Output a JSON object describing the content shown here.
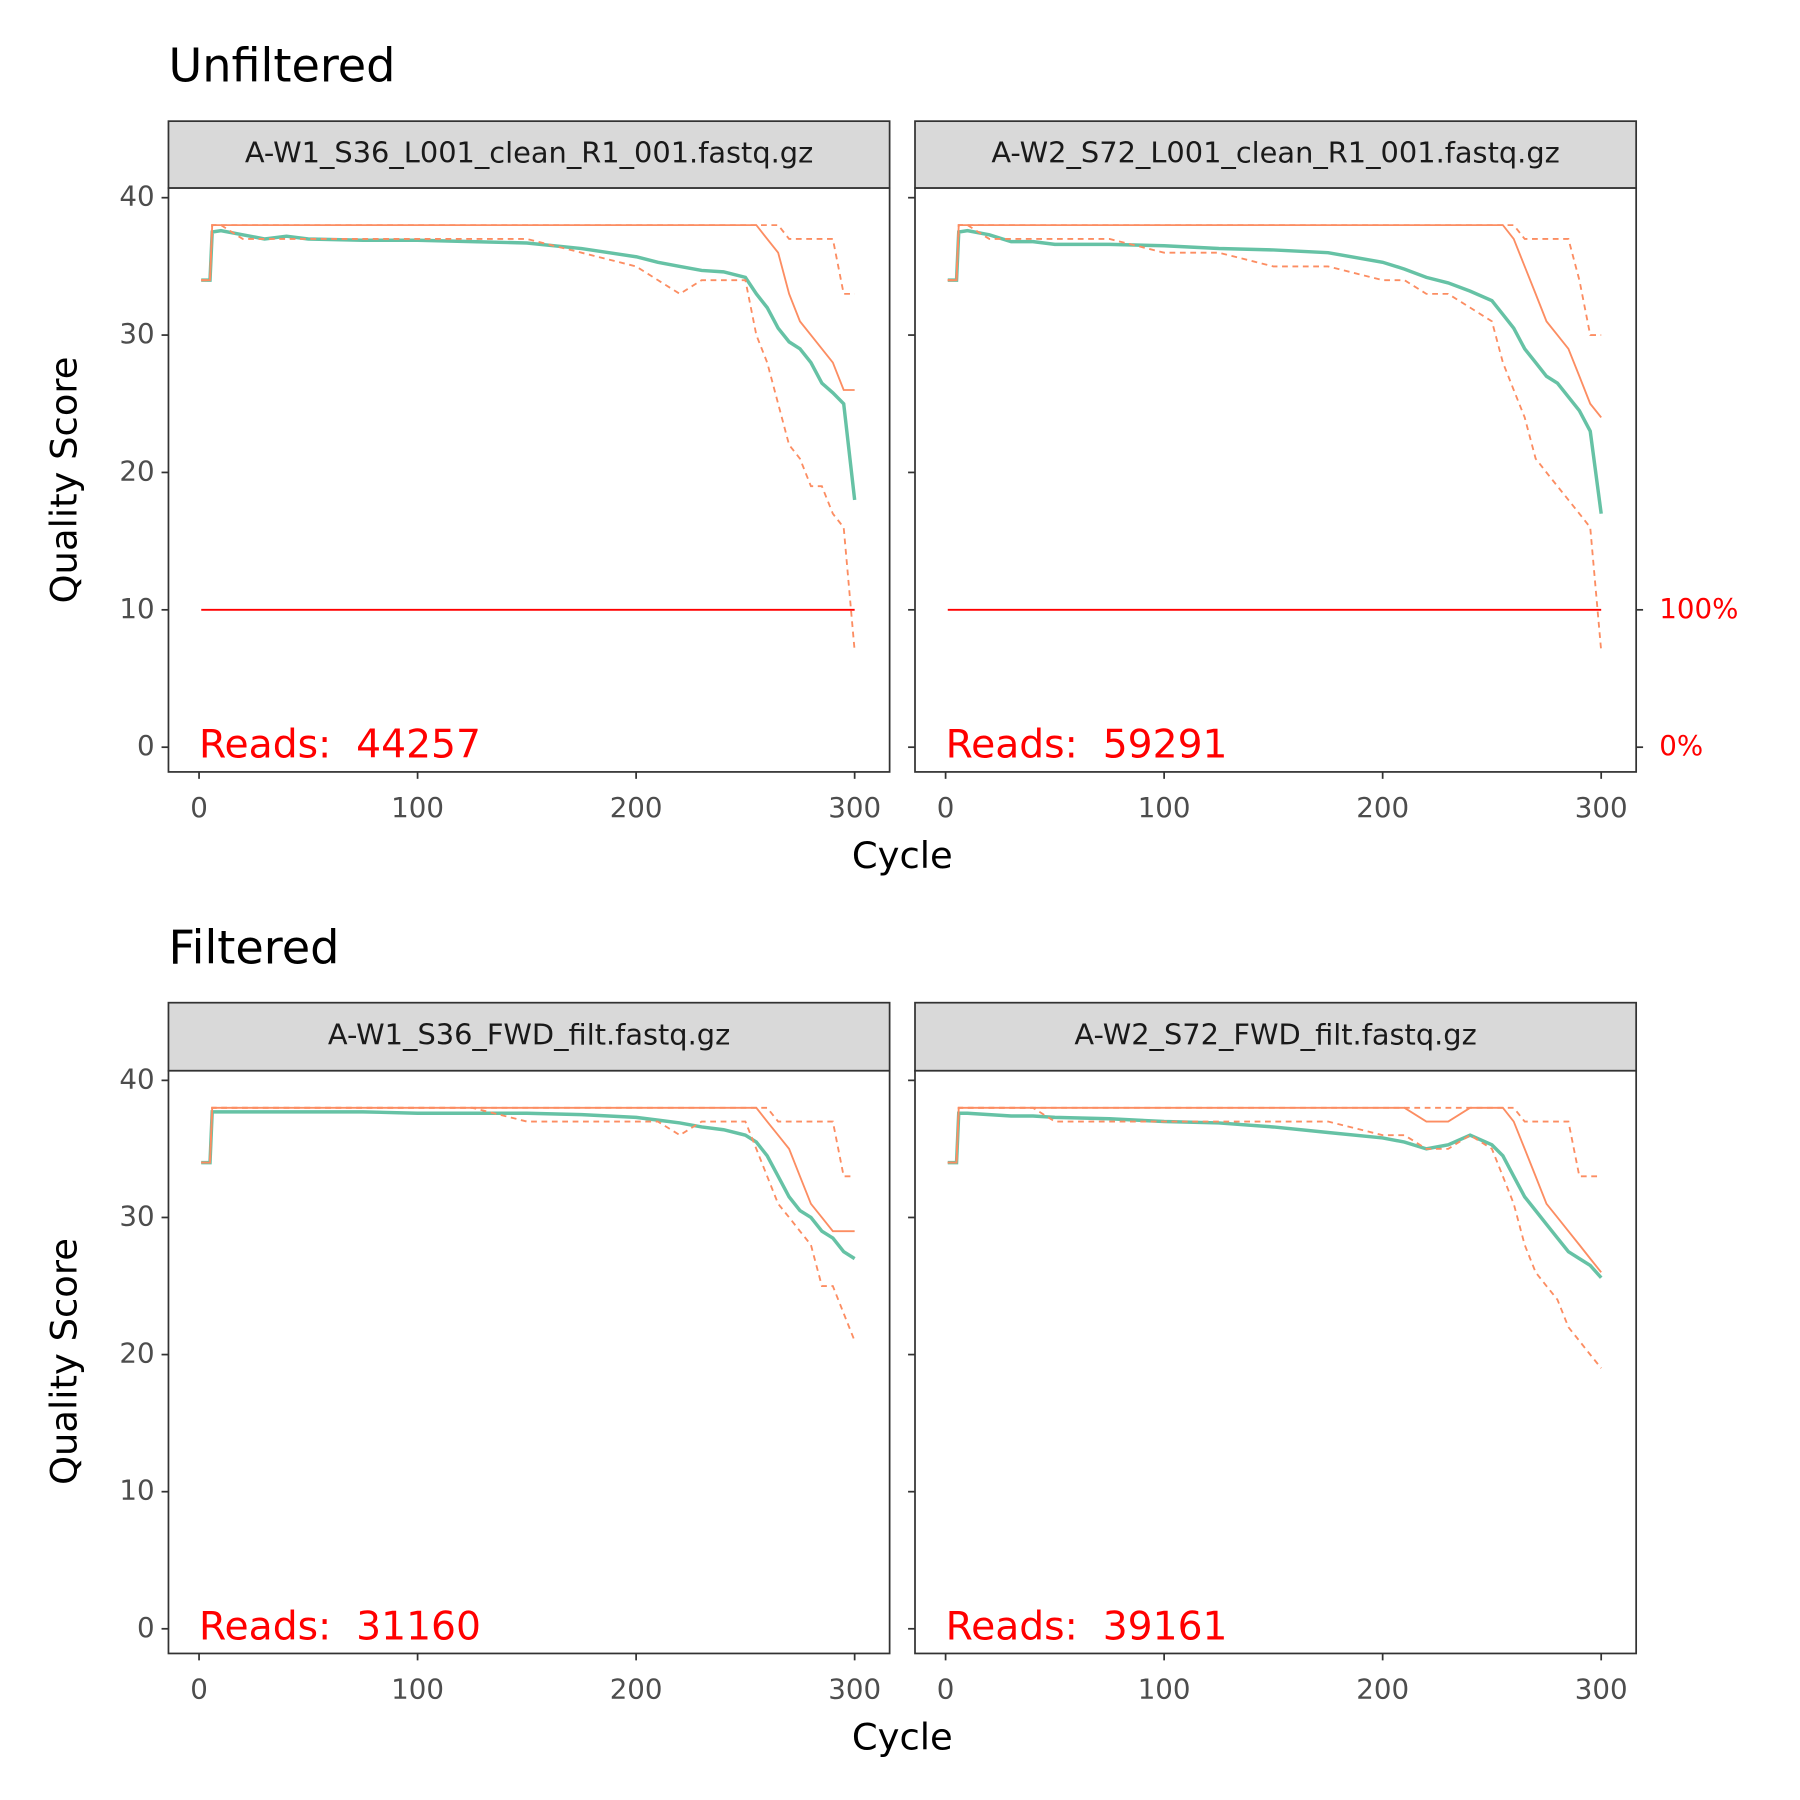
{
  "figure": {
    "rows": [
      {
        "title": "Unfiltered",
        "x_label": "Cycle",
        "y_label": "Quality Score"
      },
      {
        "title": "Filtered",
        "x_label": "Cycle",
        "y_label": "Quality Score"
      }
    ]
  },
  "chart_data": [
    {
      "type": "line",
      "title": "A-W1_S36_L001_clean_R1_001.fastq.gz",
      "annotation": "Reads:  44257",
      "xlim": [
        -14,
        316
      ],
      "ylim": [
        -1.8,
        40.7
      ],
      "xticks": [
        0,
        100,
        200,
        300
      ],
      "yticks": [
        0,
        10,
        20,
        30,
        40
      ],
      "y2lim": [
        -18,
        407
      ],
      "x": [
        1,
        5,
        6,
        10,
        20,
        30,
        40,
        50,
        75,
        100,
        125,
        150,
        175,
        200,
        210,
        220,
        230,
        240,
        250,
        255,
        260,
        265,
        270,
        275,
        280,
        285,
        290,
        295,
        300
      ],
      "series": [
        {
          "color": "#66c2a5",
          "style": "solid",
          "values": [
            34,
            34,
            37.5,
            37.6,
            37.3,
            37.0,
            37.2,
            37.0,
            36.9,
            36.9,
            36.8,
            36.7,
            36.3,
            35.7,
            35.3,
            35.0,
            34.7,
            34.6,
            34.2,
            33.0,
            32.0,
            30.5,
            29.5,
            29.0,
            28.0,
            26.5,
            25.8,
            25.0,
            18
          ]
        },
        {
          "color": "#fc8d62",
          "style": "solid",
          "values": [
            34,
            34,
            38,
            38,
            38,
            38,
            38,
            38,
            38,
            38,
            38,
            38,
            38,
            38,
            38,
            38,
            38,
            38,
            38,
            38,
            37,
            36,
            33,
            31,
            30,
            29,
            28,
            26,
            26
          ]
        },
        {
          "color": "#fc8d62",
          "style": "dashed",
          "values": [
            34,
            34,
            38,
            38,
            37,
            37,
            37,
            37,
            37,
            37,
            37,
            37,
            36,
            35,
            34,
            33,
            34,
            34,
            34,
            30,
            28,
            25,
            22,
            21,
            19,
            19,
            17,
            16,
            7
          ]
        },
        {
          "color": "#fc8d62",
          "style": "dashed",
          "values": [
            34,
            34,
            38,
            38,
            38,
            38,
            38,
            38,
            38,
            38,
            38,
            38,
            38,
            38,
            38,
            38,
            38,
            38,
            38,
            38,
            38,
            38,
            37,
            37,
            37,
            37,
            37,
            33,
            33
          ]
        },
        {
          "color": "#ff0000",
          "style": "solid",
          "axis": "y2",
          "values": [
            100,
            100,
            100,
            100,
            100,
            100,
            100,
            100,
            100,
            100,
            100,
            100,
            100,
            100,
            100,
            100,
            100,
            100,
            100,
            100,
            100,
            100,
            100,
            100,
            100,
            100,
            100,
            100,
            100
          ]
        }
      ]
    },
    {
      "type": "line",
      "title": "A-W2_S72_L001_clean_R1_001.fastq.gz",
      "annotation": "Reads:  59291",
      "xlim": [
        -14,
        316
      ],
      "ylim": [
        -1.8,
        40.7
      ],
      "xticks": [
        0,
        100,
        200,
        300
      ],
      "yticks": [
        0,
        10,
        20,
        30,
        40
      ],
      "y2lim": [
        -18,
        407
      ],
      "y2ticks": [
        {
          "value": 0,
          "label": "0%"
        },
        {
          "value": 100,
          "label": "100%"
        }
      ],
      "y2color": "#ff0000",
      "x": [
        1,
        5,
        6,
        10,
        20,
        30,
        40,
        50,
        75,
        100,
        125,
        150,
        175,
        200,
        210,
        220,
        230,
        240,
        250,
        255,
        260,
        265,
        270,
        275,
        280,
        285,
        290,
        295,
        300
      ],
      "series": [
        {
          "color": "#66c2a5",
          "style": "solid",
          "values": [
            34,
            34,
            37.5,
            37.6,
            37.3,
            36.8,
            36.8,
            36.6,
            36.6,
            36.5,
            36.3,
            36.2,
            36.0,
            35.3,
            34.8,
            34.2,
            33.8,
            33.2,
            32.5,
            31.5,
            30.5,
            29.0,
            28.0,
            27.0,
            26.5,
            25.5,
            24.5,
            23.0,
            17
          ]
        },
        {
          "color": "#fc8d62",
          "style": "solid",
          "values": [
            34,
            34,
            38,
            38,
            38,
            38,
            38,
            38,
            38,
            38,
            38,
            38,
            38,
            38,
            38,
            38,
            38,
            38,
            38,
            38,
            37,
            35,
            33,
            31,
            30,
            29,
            27,
            25,
            24
          ]
        },
        {
          "color": "#fc8d62",
          "style": "dashed",
          "values": [
            34,
            34,
            38,
            38,
            37,
            37,
            37,
            37,
            37,
            36,
            36,
            35,
            35,
            34,
            34,
            33,
            33,
            32,
            31,
            28,
            26,
            24,
            21,
            20,
            19,
            18,
            17,
            16,
            7
          ]
        },
        {
          "color": "#fc8d62",
          "style": "dashed",
          "values": [
            34,
            34,
            38,
            38,
            38,
            38,
            38,
            38,
            38,
            38,
            38,
            38,
            38,
            38,
            38,
            38,
            38,
            38,
            38,
            38,
            38,
            37,
            37,
            37,
            37,
            37,
            34,
            30,
            30
          ]
        },
        {
          "color": "#ff0000",
          "style": "solid",
          "axis": "y2",
          "values": [
            100,
            100,
            100,
            100,
            100,
            100,
            100,
            100,
            100,
            100,
            100,
            100,
            100,
            100,
            100,
            100,
            100,
            100,
            100,
            100,
            100,
            100,
            100,
            100,
            100,
            100,
            100,
            100,
            100
          ]
        }
      ]
    },
    {
      "type": "line",
      "title": "A-W1_S36_FWD_filt.fastq.gz",
      "annotation": "Reads:  31160",
      "xlim": [
        -14,
        316
      ],
      "ylim": [
        -1.8,
        40.7
      ],
      "xticks": [
        0,
        100,
        200,
        300
      ],
      "yticks": [
        0,
        10,
        20,
        30,
        40
      ],
      "x": [
        1,
        5,
        6,
        10,
        20,
        30,
        40,
        50,
        75,
        100,
        125,
        150,
        175,
        200,
        210,
        220,
        230,
        240,
        250,
        255,
        260,
        265,
        270,
        275,
        280,
        285,
        290,
        295,
        300
      ],
      "series": [
        {
          "color": "#66c2a5",
          "style": "solid",
          "values": [
            34,
            34,
            37.7,
            37.7,
            37.7,
            37.7,
            37.7,
            37.7,
            37.7,
            37.6,
            37.6,
            37.6,
            37.5,
            37.3,
            37.1,
            36.9,
            36.6,
            36.4,
            36.0,
            35.5,
            34.5,
            33.0,
            31.5,
            30.5,
            30.0,
            29.0,
            28.5,
            27.5,
            27.0
          ]
        },
        {
          "color": "#fc8d62",
          "style": "solid",
          "values": [
            34,
            34,
            38,
            38,
            38,
            38,
            38,
            38,
            38,
            38,
            38,
            38,
            38,
            38,
            38,
            38,
            38,
            38,
            38,
            38,
            37,
            36,
            35,
            33,
            31,
            30,
            29,
            29,
            29
          ]
        },
        {
          "color": "#fc8d62",
          "style": "dashed",
          "values": [
            34,
            34,
            38,
            38,
            38,
            38,
            38,
            38,
            38,
            38,
            38,
            37,
            37,
            37,
            37,
            36,
            37,
            37,
            37,
            35,
            33,
            31,
            30,
            29,
            28,
            25,
            25,
            23,
            21
          ]
        },
        {
          "color": "#fc8d62",
          "style": "dashed",
          "values": [
            34,
            34,
            38,
            38,
            38,
            38,
            38,
            38,
            38,
            38,
            38,
            38,
            38,
            38,
            38,
            38,
            38,
            38,
            38,
            38,
            38,
            37,
            37,
            37,
            37,
            37,
            37,
            33,
            33
          ]
        }
      ]
    },
    {
      "type": "line",
      "title": "A-W2_S72_FWD_filt.fastq.gz",
      "annotation": "Reads:  39161",
      "xlim": [
        -14,
        316
      ],
      "ylim": [
        -1.8,
        40.7
      ],
      "xticks": [
        0,
        100,
        200,
        300
      ],
      "yticks": [
        0,
        10,
        20,
        30,
        40
      ],
      "x": [
        1,
        5,
        6,
        10,
        20,
        30,
        40,
        50,
        75,
        100,
        125,
        150,
        175,
        200,
        210,
        220,
        230,
        240,
        250,
        255,
        260,
        265,
        270,
        275,
        280,
        285,
        290,
        295,
        300
      ],
      "series": [
        {
          "color": "#66c2a5",
          "style": "solid",
          "values": [
            34,
            34,
            37.6,
            37.6,
            37.5,
            37.4,
            37.4,
            37.3,
            37.2,
            37.0,
            36.9,
            36.6,
            36.2,
            35.8,
            35.5,
            35.0,
            35.3,
            36.0,
            35.3,
            34.5,
            33.0,
            31.5,
            30.5,
            29.5,
            28.5,
            27.5,
            27.0,
            26.5,
            25.6
          ]
        },
        {
          "color": "#fc8d62",
          "style": "solid",
          "values": [
            34,
            34,
            38,
            38,
            38,
            38,
            38,
            38,
            38,
            38,
            38,
            38,
            38,
            38,
            38,
            37,
            37,
            38,
            38,
            38,
            37,
            35,
            33,
            31,
            30,
            29,
            28,
            27,
            26
          ]
        },
        {
          "color": "#fc8d62",
          "style": "dashed",
          "values": [
            34,
            34,
            38,
            38,
            38,
            38,
            38,
            37,
            37,
            37,
            37,
            37,
            37,
            36,
            36,
            35,
            35,
            36,
            35,
            33,
            31,
            28,
            26,
            25,
            24,
            22,
            21,
            20,
            19
          ]
        },
        {
          "color": "#fc8d62",
          "style": "dashed",
          "values": [
            34,
            34,
            38,
            38,
            38,
            38,
            38,
            38,
            38,
            38,
            38,
            38,
            38,
            38,
            38,
            38,
            38,
            38,
            38,
            38,
            38,
            37,
            37,
            37,
            37,
            37,
            33,
            33,
            33
          ]
        }
      ]
    }
  ]
}
